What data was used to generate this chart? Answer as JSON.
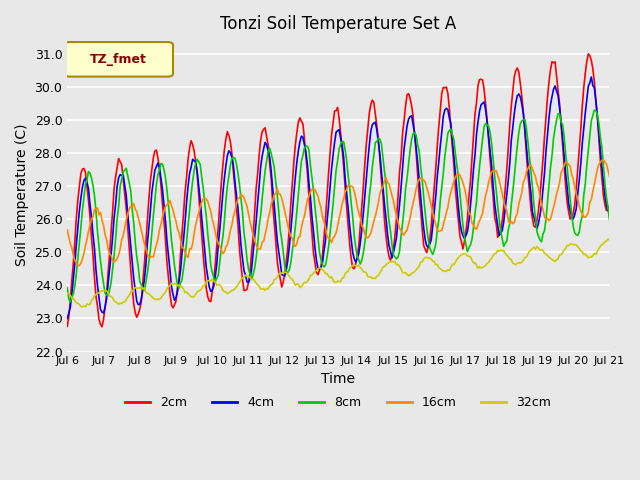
{
  "title": "Tonzi Soil Temperature Set A",
  "xlabel": "Time",
  "ylabel": "Soil Temperature (C)",
  "ylim": [
    22.0,
    31.5
  ],
  "yticks": [
    22.0,
    23.0,
    24.0,
    25.0,
    26.0,
    27.0,
    28.0,
    29.0,
    30.0,
    31.0
  ],
  "legend_label": "TZ_fmet",
  "series_labels": [
    "2cm",
    "4cm",
    "8cm",
    "16cm",
    "32cm"
  ],
  "series_colors": [
    "#ff0000",
    "#0000ff",
    "#00cc00",
    "#ff8800",
    "#cccc00"
  ],
  "background_color": "#e8e8e8",
  "plot_bg_color": "#e8e8e8",
  "grid_color": "#ffffff",
  "start_day": 6,
  "end_day": 21,
  "n_points": 360
}
